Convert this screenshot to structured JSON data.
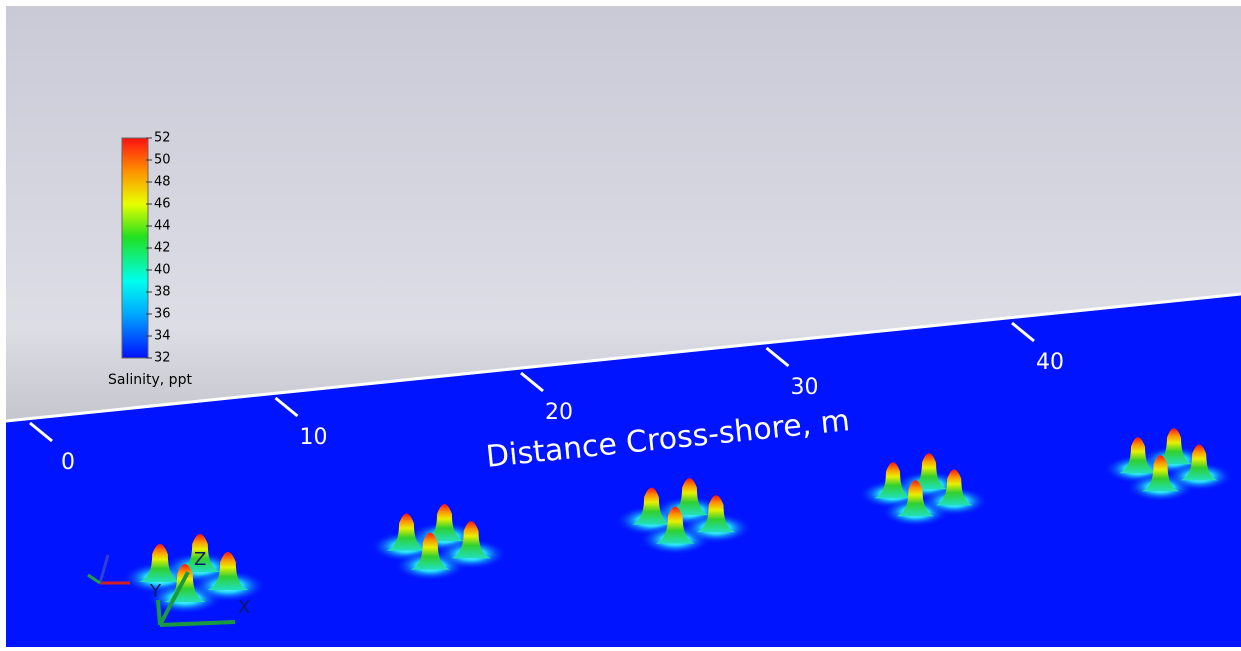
{
  "colorbar": {
    "title": "Salinity, ppt",
    "lim": [
      32,
      52
    ],
    "ticks": [
      32,
      34,
      36,
      38,
      40,
      42,
      44,
      46,
      48,
      50,
      52
    ]
  },
  "distance_axis": {
    "label": "Distance Cross-shore, m",
    "ticks": [
      0,
      10,
      20,
      30,
      40
    ]
  },
  "axes_triad": [
    "X",
    "Y",
    "Z"
  ]
}
